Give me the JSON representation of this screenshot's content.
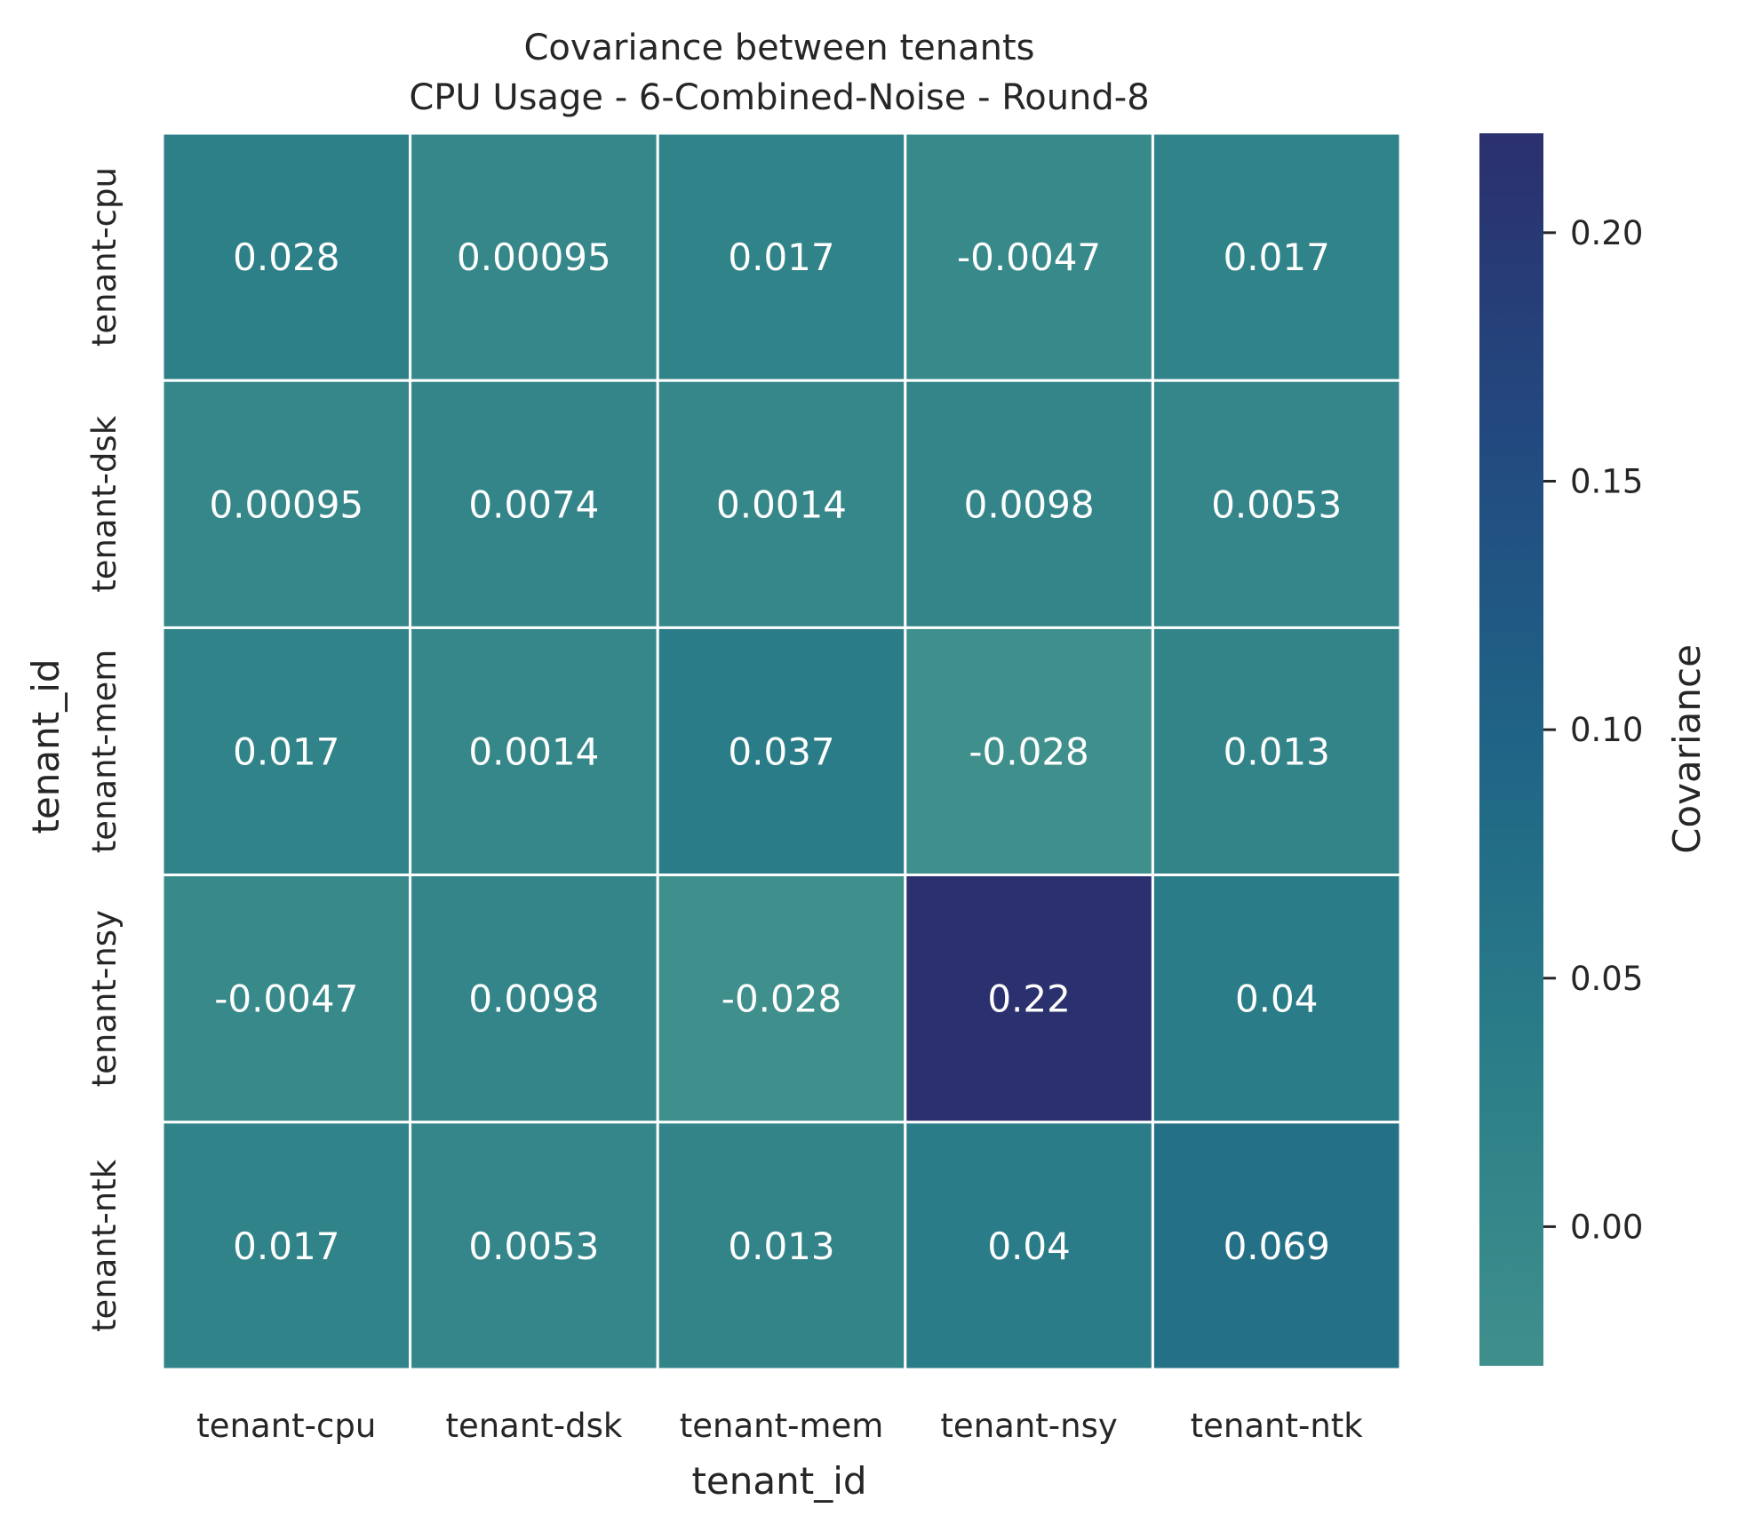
{
  "chart_data": {
    "type": "heatmap",
    "title": "Covariance between tenants",
    "subtitle": "CPU Usage - 6-Combined-Noise - Round-8",
    "xlabel": "tenant_id",
    "ylabel": "tenant_id",
    "x_categories": [
      "tenant-cpu",
      "tenant-dsk",
      "tenant-mem",
      "tenant-nsy",
      "tenant-ntk"
    ],
    "y_categories": [
      "tenant-cpu",
      "tenant-dsk",
      "tenant-mem",
      "tenant-nsy",
      "tenant-ntk"
    ],
    "values": [
      [
        0.028,
        0.00095,
        0.017,
        -0.0047,
        0.017
      ],
      [
        0.00095,
        0.0074,
        0.0014,
        0.0098,
        0.0053
      ],
      [
        0.017,
        0.0014,
        0.037,
        -0.028,
        0.013
      ],
      [
        -0.0047,
        0.0098,
        -0.028,
        0.22,
        0.04
      ],
      [
        0.017,
        0.0053,
        0.013,
        0.04,
        0.069
      ]
    ],
    "annotations": [
      [
        "0.028",
        "0.00095",
        "0.017",
        "-0.0047",
        "0.017"
      ],
      [
        "0.00095",
        "0.0074",
        "0.0014",
        "0.0098",
        "0.0053"
      ],
      [
        "0.017",
        "0.0014",
        "0.037",
        "-0.028",
        "0.013"
      ],
      [
        "-0.0047",
        "0.0098",
        "-0.028",
        "0.22",
        "0.04"
      ],
      [
        "0.017",
        "0.0053",
        "0.013",
        "0.04",
        "0.069"
      ]
    ],
    "colorbar": {
      "label": "Covariance",
      "range": [
        -0.028,
        0.22
      ],
      "ticks": [
        0.0,
        0.05,
        0.1,
        0.15,
        0.2
      ],
      "tick_labels": [
        "0.00",
        "0.05",
        "0.10",
        "0.15",
        "0.20"
      ],
      "colors": [
        "#3f8f8c",
        "#2b7e88",
        "#1f6586",
        "#224a80",
        "#2b306e"
      ]
    },
    "grid": false
  }
}
